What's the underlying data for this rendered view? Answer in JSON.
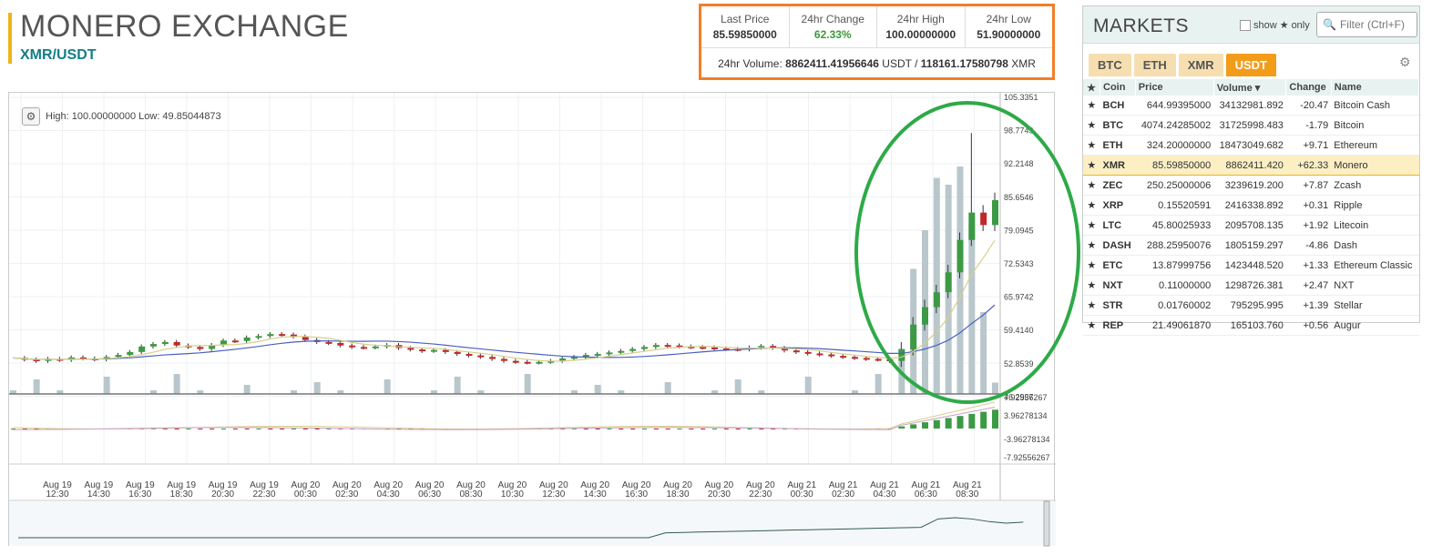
{
  "header": {
    "title": "MONERO EXCHANGE",
    "pair": "XMR/USDT"
  },
  "ticker": {
    "last_price_label": "Last Price",
    "last_price": "85.59850000",
    "change_label": "24hr Change",
    "change": "62.33%",
    "high_label": "24hr High",
    "high": "100.00000000",
    "low_label": "24hr Low",
    "low": "51.90000000",
    "volume_label": "24hr Volume:",
    "volume_usdt": "8862411.41956646",
    "usdt": "USDT",
    "slash": "/",
    "volume_xmr": "118161.17580798",
    "xmr": "XMR"
  },
  "chart": {
    "high_low_text": "High: 100.00000000  Low: 49.85044873",
    "price_ticks": [
      "105.3351",
      "98.7749",
      "92.2148",
      "85.6546",
      "79.0945",
      "72.5343",
      "65.9742",
      "59.4140",
      "52.8539",
      "46.2937"
    ],
    "macd_ticks": [
      "7.92556267",
      "3.96278134",
      "-3.96278134",
      "-7.92556267"
    ],
    "time_labels": [
      [
        "Aug 19",
        "12:30"
      ],
      [
        "Aug 19",
        "14:30"
      ],
      [
        "Aug 19",
        "16:30"
      ],
      [
        "Aug 19",
        "18:30"
      ],
      [
        "Aug 19",
        "20:30"
      ],
      [
        "Aug 19",
        "22:30"
      ],
      [
        "Aug 20",
        "00:30"
      ],
      [
        "Aug 20",
        "02:30"
      ],
      [
        "Aug 20",
        "04:30"
      ],
      [
        "Aug 20",
        "06:30"
      ],
      [
        "Aug 20",
        "08:30"
      ],
      [
        "Aug 20",
        "10:30"
      ],
      [
        "Aug 20",
        "12:30"
      ],
      [
        "Aug 20",
        "14:30"
      ],
      [
        "Aug 20",
        "16:30"
      ],
      [
        "Aug 20",
        "18:30"
      ],
      [
        "Aug 20",
        "20:30"
      ],
      [
        "Aug 20",
        "22:30"
      ],
      [
        "Aug 21",
        "00:30"
      ],
      [
        "Aug 21",
        "02:30"
      ],
      [
        "Aug 21",
        "04:30"
      ],
      [
        "Aug 21",
        "06:30"
      ],
      [
        "Aug 21",
        "08:30"
      ]
    ],
    "colors": {
      "up": "#3c9a44",
      "down": "#c0282b",
      "volume": "#b9c7cc",
      "ma_blue": "#4a5fbf",
      "ma_yellow": "#d8cf8a",
      "highlight": "#2eaa47"
    }
  },
  "markets": {
    "title": "MARKETS",
    "show_label": "show",
    "only_label": "only",
    "filter_placeholder": "Filter (Ctrl+F)",
    "tabs": [
      "BTC",
      "ETH",
      "XMR",
      "USDT"
    ],
    "active_tab": "USDT",
    "columns": [
      "Coin",
      "Price",
      "Volume",
      "Change",
      "Name"
    ],
    "volume_sort": "▾",
    "rows": [
      {
        "coin": "BCH",
        "price": "644.99395000",
        "volume": "34132981.892",
        "change": "-20.47",
        "name": "Bitcoin Cash"
      },
      {
        "coin": "BTC",
        "price": "4074.24285002",
        "volume": "31725998.483",
        "change": "-1.79",
        "name": "Bitcoin"
      },
      {
        "coin": "ETH",
        "price": "324.20000000",
        "volume": "18473049.682",
        "change": "+9.71",
        "name": "Ethereum"
      },
      {
        "coin": "XMR",
        "price": "85.59850000",
        "volume": "8862411.420",
        "change": "+62.33",
        "name": "Monero"
      },
      {
        "coin": "ZEC",
        "price": "250.25000006",
        "volume": "3239619.200",
        "change": "+7.87",
        "name": "Zcash"
      },
      {
        "coin": "XRP",
        "price": "0.15520591",
        "volume": "2416338.892",
        "change": "+0.31",
        "name": "Ripple"
      },
      {
        "coin": "LTC",
        "price": "45.80025933",
        "volume": "2095708.135",
        "change": "+1.92",
        "name": "Litecoin"
      },
      {
        "coin": "DASH",
        "price": "288.25950076",
        "volume": "1805159.297",
        "change": "-4.86",
        "name": "Dash"
      },
      {
        "coin": "ETC",
        "price": "13.87999756",
        "volume": "1423448.520",
        "change": "+1.33",
        "name": "Ethereum Classic"
      },
      {
        "coin": "NXT",
        "price": "0.11000000",
        "volume": "1298726.381",
        "change": "+2.47",
        "name": "NXT"
      },
      {
        "coin": "STR",
        "price": "0.01760002",
        "volume": "795295.995",
        "change": "+1.39",
        "name": "Stellar"
      },
      {
        "coin": "REP",
        "price": "21.49061870",
        "volume": "165103.760",
        "change": "+0.56",
        "name": "Augur"
      }
    ],
    "selected_coin": "XMR"
  }
}
